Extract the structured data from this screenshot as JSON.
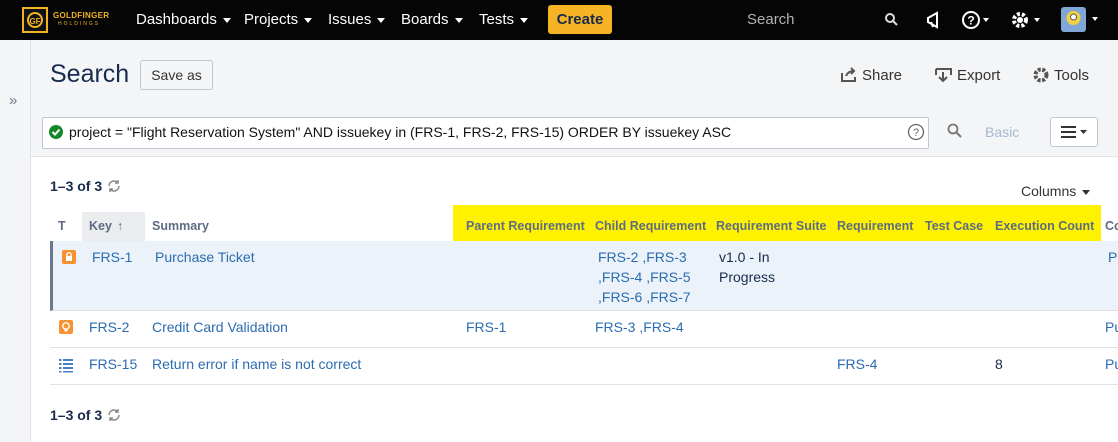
{
  "nav": {
    "logo_line1": "GOLDFINGER",
    "logo_line2": "HOLDINGS",
    "menu": [
      "Dashboards",
      "Projects",
      "Issues",
      "Boards",
      "Tests"
    ],
    "create": "Create",
    "search_placeholder": "Search"
  },
  "header": {
    "title": "Search",
    "save_as": "Save as",
    "actions": [
      "Share",
      "Export",
      "Tools"
    ]
  },
  "query": {
    "text": "project = \"Flight Reservation System\" AND issuekey in (FRS-1, FRS-2, FRS-15) ORDER BY issuekey ASC",
    "mode": "Basic"
  },
  "results": {
    "count": "1–3 of 3",
    "columns_button": "Columns",
    "footer_count": "1–3 of 3"
  },
  "table": {
    "columns": [
      "T",
      "Key",
      "Summary",
      "Parent Requirement",
      "Child Requirement",
      "Requirement Suite",
      "Requirement",
      "Test Case",
      "Execution Count",
      "Co"
    ],
    "rows": [
      {
        "key": "FRS-1",
        "summary": "Purchase Ticket",
        "child_requirement": "FRS-2 ,FRS-3 ,FRS-4 ,FRS-5 ,FRS-6 ,FRS-7",
        "requirement_suite": "v1.0 - In Progress",
        "co": "Pu"
      },
      {
        "key": "FRS-2",
        "summary": "Credit Card Validation",
        "parent_requirement": "FRS-1",
        "child_requirement": "FRS-3 ,FRS-4",
        "co": "Pu"
      },
      {
        "key": "FRS-15",
        "summary": "Return error if name is not correct",
        "requirement": "FRS-4",
        "execution_count": "8",
        "co": "Pu"
      }
    ]
  }
}
